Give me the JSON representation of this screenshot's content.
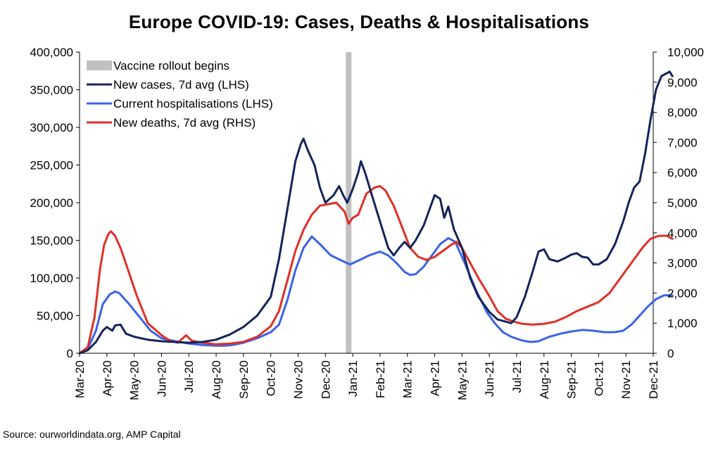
{
  "title": "Europe COVID-19: Cases, Deaths & Hospitalisations",
  "source": "Source: ourworldindata.org, AMP Capital",
  "chart_data": {
    "type": "line",
    "title": "Europe COVID-19: Cases, Deaths & Hospitalisations",
    "x_categories": [
      "Mar-20",
      "Apr-20",
      "May-20",
      "Jun-20",
      "Jul-20",
      "Aug-20",
      "Sep-20",
      "Oct-20",
      "Nov-20",
      "Dec-20",
      "Jan-21",
      "Feb-21",
      "Mar-21",
      "Apr-21",
      "May-21",
      "Jun-21",
      "Jul-21",
      "Aug-21",
      "Sep-21",
      "Oct-21",
      "Nov-21",
      "Dec-21"
    ],
    "left_axis": {
      "ylim": [
        0,
        400000
      ],
      "ticks": [
        "0",
        "50,000",
        "100,000",
        "150,000",
        "200,000",
        "250,000",
        "300,000",
        "350,000",
        "400,000"
      ]
    },
    "right_axis": {
      "ylim": [
        0,
        10000
      ],
      "ticks": [
        "0",
        "1,000",
        "2,000",
        "3,000",
        "4,000",
        "5,000",
        "6,000",
        "7,000",
        "8,000",
        "9,000",
        "10,000"
      ]
    },
    "legend_position": "top-left",
    "vaccine_rollout": {
      "label": "Vaccine rollout begins",
      "x": 9.85,
      "color": "#c0c0c0"
    },
    "series": [
      {
        "name": "New cases, 7d avg (LHS)",
        "axis": "left",
        "color": "#14235a",
        "points": [
          [
            0,
            0
          ],
          [
            0.3,
            4000
          ],
          [
            0.6,
            15000
          ],
          [
            0.85,
            30000
          ],
          [
            1.0,
            35000
          ],
          [
            1.2,
            30000
          ],
          [
            1.3,
            37000
          ],
          [
            1.5,
            38000
          ],
          [
            1.7,
            26000
          ],
          [
            2.0,
            22000
          ],
          [
            2.5,
            18000
          ],
          [
            3.0,
            16000
          ],
          [
            3.5,
            15000
          ],
          [
            4.0,
            14000
          ],
          [
            4.5,
            15000
          ],
          [
            5.0,
            18000
          ],
          [
            5.5,
            25000
          ],
          [
            6.0,
            35000
          ],
          [
            6.5,
            50000
          ],
          [
            7.0,
            75000
          ],
          [
            7.3,
            125000
          ],
          [
            7.6,
            190000
          ],
          [
            7.9,
            255000
          ],
          [
            8.1,
            278000
          ],
          [
            8.2,
            285000
          ],
          [
            8.35,
            270000
          ],
          [
            8.6,
            250000
          ],
          [
            8.8,
            220000
          ],
          [
            9.0,
            200000
          ],
          [
            9.3,
            210000
          ],
          [
            9.5,
            222000
          ],
          [
            9.65,
            210000
          ],
          [
            9.8,
            200000
          ],
          [
            10.0,
            218000
          ],
          [
            10.2,
            240000
          ],
          [
            10.3,
            255000
          ],
          [
            10.45,
            240000
          ],
          [
            10.7,
            210000
          ],
          [
            11.0,
            175000
          ],
          [
            11.3,
            140000
          ],
          [
            11.5,
            130000
          ],
          [
            11.7,
            140000
          ],
          [
            11.9,
            148000
          ],
          [
            12.1,
            140000
          ],
          [
            12.3,
            150000
          ],
          [
            12.6,
            170000
          ],
          [
            12.9,
            200000
          ],
          [
            13.0,
            210000
          ],
          [
            13.2,
            205000
          ],
          [
            13.35,
            180000
          ],
          [
            13.5,
            195000
          ],
          [
            13.7,
            165000
          ],
          [
            14.0,
            140000
          ],
          [
            14.3,
            100000
          ],
          [
            14.6,
            75000
          ],
          [
            15.0,
            55000
          ],
          [
            15.3,
            45000
          ],
          [
            15.6,
            42000
          ],
          [
            15.8,
            40000
          ],
          [
            16.0,
            48000
          ],
          [
            16.3,
            75000
          ],
          [
            16.6,
            110000
          ],
          [
            16.8,
            135000
          ],
          [
            17.0,
            138000
          ],
          [
            17.2,
            125000
          ],
          [
            17.5,
            122000
          ],
          [
            17.8,
            127000
          ],
          [
            18.0,
            131000
          ],
          [
            18.2,
            133000
          ],
          [
            18.4,
            128000
          ],
          [
            18.6,
            127000
          ],
          [
            18.8,
            118000
          ],
          [
            19.0,
            118000
          ],
          [
            19.3,
            125000
          ],
          [
            19.6,
            145000
          ],
          [
            19.9,
            175000
          ],
          [
            20.1,
            200000
          ],
          [
            20.3,
            220000
          ],
          [
            20.5,
            228000
          ],
          [
            20.7,
            265000
          ],
          [
            20.9,
            310000
          ],
          [
            21.1,
            350000
          ],
          [
            21.3,
            368000
          ],
          [
            21.5,
            372000
          ],
          [
            21.6,
            374000
          ],
          [
            21.7,
            368000
          ]
        ]
      },
      {
        "name": "Current hospitalisations (LHS)",
        "axis": "left",
        "color": "#3a63e8",
        "points": [
          [
            0,
            0
          ],
          [
            0.3,
            6000
          ],
          [
            0.6,
            30000
          ],
          [
            0.85,
            65000
          ],
          [
            1.1,
            78000
          ],
          [
            1.3,
            82000
          ],
          [
            1.45,
            80000
          ],
          [
            1.8,
            66000
          ],
          [
            2.2,
            48000
          ],
          [
            2.6,
            30000
          ],
          [
            3.0,
            20000
          ],
          [
            3.5,
            16000
          ],
          [
            4.0,
            13000
          ],
          [
            4.5,
            11000
          ],
          [
            5.0,
            10000
          ],
          [
            5.3,
            10000
          ],
          [
            5.6,
            11000
          ],
          [
            6.0,
            14000
          ],
          [
            6.5,
            20000
          ],
          [
            7.0,
            28000
          ],
          [
            7.3,
            38000
          ],
          [
            7.6,
            70000
          ],
          [
            7.9,
            110000
          ],
          [
            8.2,
            140000
          ],
          [
            8.5,
            155000
          ],
          [
            8.8,
            145000
          ],
          [
            9.2,
            130000
          ],
          [
            9.6,
            123000
          ],
          [
            9.9,
            118000
          ],
          [
            10.2,
            123000
          ],
          [
            10.6,
            130000
          ],
          [
            11.0,
            135000
          ],
          [
            11.3,
            130000
          ],
          [
            11.6,
            120000
          ],
          [
            11.9,
            108000
          ],
          [
            12.1,
            104000
          ],
          [
            12.3,
            105000
          ],
          [
            12.6,
            115000
          ],
          [
            12.9,
            130000
          ],
          [
            13.2,
            145000
          ],
          [
            13.5,
            153000
          ],
          [
            13.75,
            148000
          ],
          [
            14.1,
            120000
          ],
          [
            14.5,
            85000
          ],
          [
            14.9,
            55000
          ],
          [
            15.2,
            40000
          ],
          [
            15.5,
            28000
          ],
          [
            15.8,
            22000
          ],
          [
            16.2,
            17000
          ],
          [
            16.5,
            15000
          ],
          [
            16.8,
            16000
          ],
          [
            17.2,
            22000
          ],
          [
            17.6,
            26000
          ],
          [
            18.0,
            29000
          ],
          [
            18.4,
            31000
          ],
          [
            18.8,
            30000
          ],
          [
            19.2,
            28000
          ],
          [
            19.6,
            28000
          ],
          [
            19.9,
            30000
          ],
          [
            20.2,
            38000
          ],
          [
            20.5,
            50000
          ],
          [
            20.8,
            62000
          ],
          [
            21.1,
            72000
          ],
          [
            21.4,
            77000
          ],
          [
            21.7,
            77000
          ]
        ]
      },
      {
        "name": "New deaths, 7d avg (RHS)",
        "axis": "right",
        "color": "#e02f26",
        "points": [
          [
            0,
            0
          ],
          [
            0.3,
            200
          ],
          [
            0.55,
            1200
          ],
          [
            0.75,
            2800
          ],
          [
            0.9,
            3600
          ],
          [
            1.05,
            3950
          ],
          [
            1.15,
            4050
          ],
          [
            1.3,
            3900
          ],
          [
            1.5,
            3500
          ],
          [
            1.8,
            2700
          ],
          [
            2.1,
            1900
          ],
          [
            2.5,
            1000
          ],
          [
            3.0,
            600
          ],
          [
            3.3,
            420
          ],
          [
            3.6,
            350
          ],
          [
            3.9,
            600
          ],
          [
            4.1,
            420
          ],
          [
            4.5,
            350
          ],
          [
            5.0,
            300
          ],
          [
            5.5,
            320
          ],
          [
            6.0,
            380
          ],
          [
            6.5,
            550
          ],
          [
            7.0,
            900
          ],
          [
            7.3,
            1400
          ],
          [
            7.6,
            2400
          ],
          [
            7.9,
            3400
          ],
          [
            8.2,
            4100
          ],
          [
            8.5,
            4600
          ],
          [
            8.8,
            4900
          ],
          [
            9.1,
            4950
          ],
          [
            9.4,
            5000
          ],
          [
            9.7,
            4700
          ],
          [
            9.85,
            4300
          ],
          [
            10.0,
            4500
          ],
          [
            10.2,
            4600
          ],
          [
            10.5,
            5300
          ],
          [
            10.8,
            5500
          ],
          [
            11.0,
            5550
          ],
          [
            11.2,
            5400
          ],
          [
            11.5,
            4900
          ],
          [
            11.8,
            4200
          ],
          [
            12.1,
            3500
          ],
          [
            12.4,
            3200
          ],
          [
            12.7,
            3100
          ],
          [
            13.0,
            3200
          ],
          [
            13.3,
            3400
          ],
          [
            13.6,
            3600
          ],
          [
            13.8,
            3700
          ],
          [
            14.0,
            3500
          ],
          [
            14.3,
            3000
          ],
          [
            14.6,
            2500
          ],
          [
            15.0,
            1900
          ],
          [
            15.3,
            1400
          ],
          [
            15.6,
            1150
          ],
          [
            15.9,
            1050
          ],
          [
            16.2,
            980
          ],
          [
            16.6,
            950
          ],
          [
            17.0,
            980
          ],
          [
            17.4,
            1050
          ],
          [
            17.8,
            1200
          ],
          [
            18.2,
            1400
          ],
          [
            18.6,
            1550
          ],
          [
            19.0,
            1700
          ],
          [
            19.4,
            2000
          ],
          [
            19.8,
            2500
          ],
          [
            20.2,
            3000
          ],
          [
            20.6,
            3500
          ],
          [
            20.9,
            3800
          ],
          [
            21.2,
            3900
          ],
          [
            21.5,
            3900
          ],
          [
            21.7,
            3800
          ]
        ]
      }
    ]
  }
}
